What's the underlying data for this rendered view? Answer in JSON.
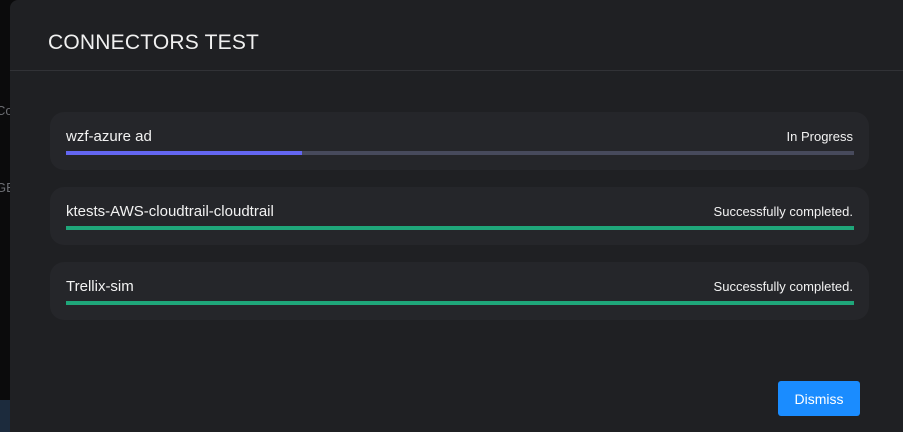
{
  "background": {
    "fragments": [
      "Co",
      "GE"
    ]
  },
  "modal": {
    "title": "CONNECTORS TEST",
    "connectors": [
      {
        "name": "wzf-azure ad",
        "status": "In Progress",
        "progress_percent": 30,
        "bar_color": "#6366f1"
      },
      {
        "name": "ktests-AWS-cloudtrail-cloudtrail",
        "status": "Successfully completed.",
        "progress_percent": 100,
        "bar_color": "#1fa67a"
      },
      {
        "name": "Trellix-sim",
        "status": "Successfully completed.",
        "progress_percent": 100,
        "bar_color": "#1fa67a"
      }
    ],
    "dismiss_label": "Dismiss"
  },
  "colors": {
    "accent": "#1a8cff",
    "track": "#474a5c"
  }
}
